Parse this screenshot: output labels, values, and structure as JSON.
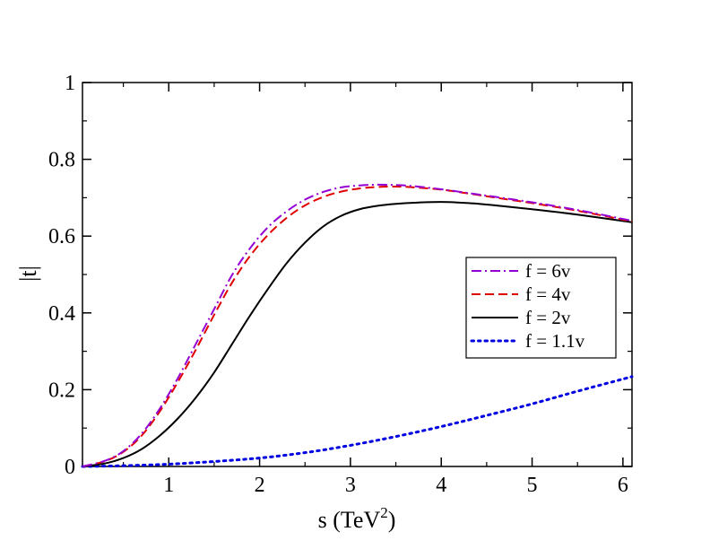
{
  "chart_data": {
    "type": "line",
    "title": "",
    "xlabel_main": "s (TeV",
    "xlabel_sup": "2",
    "xlabel_end": ")",
    "ylabel": "|t|",
    "xlim": [
      0.05,
      6.1
    ],
    "ylim": [
      0,
      1
    ],
    "x_ticks": [
      1,
      2,
      3,
      4,
      5,
      6
    ],
    "y_ticks": [
      0,
      0.2,
      0.4,
      0.6,
      0.8,
      1
    ],
    "x_tick_labels": [
      "1",
      "2",
      "3",
      "4",
      "5",
      "6"
    ],
    "y_tick_labels": [
      "0",
      "0.2",
      "0.4",
      "0.6",
      "0.8",
      "1"
    ],
    "grid": false,
    "legend_position": "right",
    "series": [
      {
        "name": "f = 6v",
        "color": "#9400d3",
        "dash": "dashdot",
        "x": [
          0.05,
          0.3,
          0.5,
          0.7,
          0.9,
          1.1,
          1.3,
          1.5,
          1.7,
          1.9,
          2.1,
          2.3,
          2.5,
          2.7,
          2.9,
          3.1,
          3.3,
          3.5,
          3.7,
          4.0,
          4.3,
          4.6,
          5.0,
          5.5,
          6.1
        ],
        "y": [
          0.0,
          0.015,
          0.04,
          0.085,
          0.15,
          0.23,
          0.32,
          0.41,
          0.5,
          0.57,
          0.625,
          0.665,
          0.695,
          0.715,
          0.727,
          0.732,
          0.734,
          0.733,
          0.73,
          0.722,
          0.712,
          0.702,
          0.688,
          0.668,
          0.64
        ]
      },
      {
        "name": "f = 4v",
        "color": "#e00000",
        "dash": "dashed",
        "x": [
          0.05,
          0.3,
          0.5,
          0.7,
          0.9,
          1.1,
          1.3,
          1.5,
          1.7,
          1.9,
          2.1,
          2.3,
          2.5,
          2.7,
          2.9,
          3.1,
          3.3,
          3.5,
          3.7,
          4.0,
          4.3,
          4.6,
          5.0,
          5.5,
          6.1
        ],
        "y": [
          0.0,
          0.014,
          0.038,
          0.08,
          0.143,
          0.22,
          0.305,
          0.395,
          0.48,
          0.55,
          0.605,
          0.648,
          0.68,
          0.702,
          0.716,
          0.724,
          0.728,
          0.729,
          0.727,
          0.721,
          0.711,
          0.7,
          0.686,
          0.666,
          0.638
        ]
      },
      {
        "name": "f = 2v",
        "color": "#000000",
        "dash": "solid",
        "x": [
          0.05,
          0.3,
          0.5,
          0.7,
          0.9,
          1.1,
          1.3,
          1.5,
          1.7,
          1.9,
          2.1,
          2.3,
          2.5,
          2.7,
          2.9,
          3.1,
          3.3,
          3.5,
          3.7,
          4.0,
          4.3,
          4.6,
          5.0,
          5.5,
          6.1
        ],
        "y": [
          0.0,
          0.008,
          0.022,
          0.045,
          0.08,
          0.125,
          0.18,
          0.245,
          0.32,
          0.395,
          0.465,
          0.53,
          0.583,
          0.625,
          0.653,
          0.67,
          0.679,
          0.684,
          0.687,
          0.689,
          0.686,
          0.68,
          0.67,
          0.656,
          0.636
        ]
      },
      {
        "name": "f = 1.1v",
        "color": "#0000e0",
        "dash": "dotted",
        "x": [
          0.05,
          0.5,
          1.0,
          1.5,
          2.0,
          2.5,
          3.0,
          3.5,
          4.0,
          4.5,
          5.0,
          5.5,
          6.1
        ],
        "y": [
          0.0,
          0.002,
          0.006,
          0.013,
          0.022,
          0.036,
          0.055,
          0.078,
          0.104,
          0.133,
          0.163,
          0.196,
          0.234
        ]
      }
    ]
  }
}
